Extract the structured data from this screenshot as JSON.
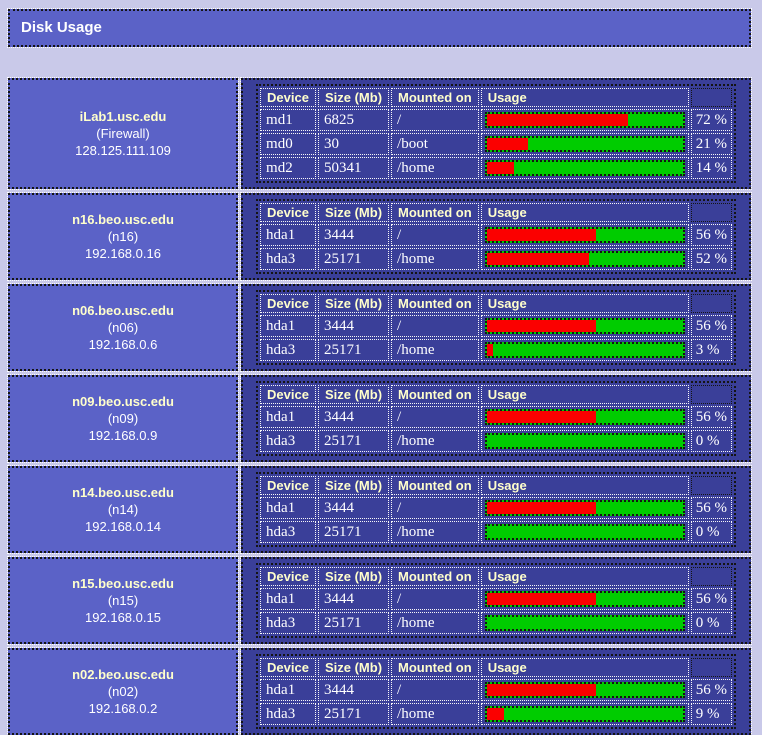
{
  "page": {
    "title": "Disk Usage"
  },
  "table": {
    "headers": {
      "device": "Device",
      "size": "Size (Mb)",
      "mounted": "Mounted on",
      "usage": "Usage"
    }
  },
  "colors": {
    "used_red": "#fb0000",
    "free_green": "#00cc00",
    "panel_blue": "#5b62c7",
    "table_navy": "#3a3f99",
    "page_bg": "#c9c9e9",
    "header_text": "#ffffcc"
  },
  "chart_data": {
    "type": "bar",
    "title": "Disk Usage",
    "ylabel": "Usage %",
    "ylim": [
      0,
      100
    ],
    "categories": [
      "iLab1:md1",
      "iLab1:md0",
      "iLab1:md2",
      "n16:hda1",
      "n16:hda3",
      "n06:hda1",
      "n06:hda3",
      "n09:hda1",
      "n09:hda3",
      "n14:hda1",
      "n14:hda3",
      "n15:hda1",
      "n15:hda3",
      "n02:hda1",
      "n02:hda3"
    ],
    "values": [
      72,
      21,
      14,
      56,
      52,
      56,
      3,
      56,
      0,
      56,
      0,
      56,
      0,
      56,
      9
    ]
  },
  "hosts": [
    {
      "hostname": "iLab1.usc.edu",
      "alias": "(Firewall)",
      "ip": "128.125.111.109",
      "disks": [
        {
          "device": "md1",
          "size": "6825",
          "mount": "/",
          "usage_pct": 72
        },
        {
          "device": "md0",
          "size": "30",
          "mount": "/boot",
          "usage_pct": 21
        },
        {
          "device": "md2",
          "size": "50341",
          "mount": "/home",
          "usage_pct": 14
        }
      ]
    },
    {
      "hostname": "n16.beo.usc.edu",
      "alias": "(n16)",
      "ip": "192.168.0.16",
      "disks": [
        {
          "device": "hda1",
          "size": "3444",
          "mount": "/",
          "usage_pct": 56
        },
        {
          "device": "hda3",
          "size": "25171",
          "mount": "/home",
          "usage_pct": 52
        }
      ]
    },
    {
      "hostname": "n06.beo.usc.edu",
      "alias": "(n06)",
      "ip": "192.168.0.6",
      "disks": [
        {
          "device": "hda1",
          "size": "3444",
          "mount": "/",
          "usage_pct": 56
        },
        {
          "device": "hda3",
          "size": "25171",
          "mount": "/home",
          "usage_pct": 3
        }
      ]
    },
    {
      "hostname": "n09.beo.usc.edu",
      "alias": "(n09)",
      "ip": "192.168.0.9",
      "disks": [
        {
          "device": "hda1",
          "size": "3444",
          "mount": "/",
          "usage_pct": 56
        },
        {
          "device": "hda3",
          "size": "25171",
          "mount": "/home",
          "usage_pct": 0
        }
      ]
    },
    {
      "hostname": "n14.beo.usc.edu",
      "alias": "(n14)",
      "ip": "192.168.0.14",
      "disks": [
        {
          "device": "hda1",
          "size": "3444",
          "mount": "/",
          "usage_pct": 56
        },
        {
          "device": "hda3",
          "size": "25171",
          "mount": "/home",
          "usage_pct": 0
        }
      ]
    },
    {
      "hostname": "n15.beo.usc.edu",
      "alias": "(n15)",
      "ip": "192.168.0.15",
      "disks": [
        {
          "device": "hda1",
          "size": "3444",
          "mount": "/",
          "usage_pct": 56
        },
        {
          "device": "hda3",
          "size": "25171",
          "mount": "/home",
          "usage_pct": 0
        }
      ]
    },
    {
      "hostname": "n02.beo.usc.edu",
      "alias": "(n02)",
      "ip": "192.168.0.2",
      "disks": [
        {
          "device": "hda1",
          "size": "3444",
          "mount": "/",
          "usage_pct": 56
        },
        {
          "device": "hda3",
          "size": "25171",
          "mount": "/home",
          "usage_pct": 9
        }
      ]
    }
  ]
}
